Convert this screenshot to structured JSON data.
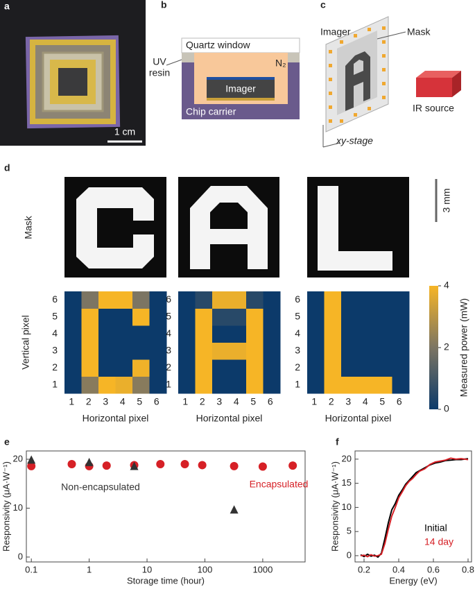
{
  "panel_labels": [
    "a",
    "b",
    "c",
    "d",
    "e",
    "f"
  ],
  "panel_a": {
    "scale_bar": "1 cm"
  },
  "panel_b": {
    "quartz_window": "Quartz window",
    "uv_resin": [
      "UV",
      "resin"
    ],
    "gas": "N₂",
    "imager": "Imager",
    "chip_carrier": "Chip carrier"
  },
  "panel_c": {
    "imager": "Imager",
    "mask": "Mask",
    "ir_source": "IR source",
    "stage": "xy-stage"
  },
  "panel_d": {
    "row_label": "Mask",
    "scale_bar": "3 mm"
  },
  "chart_data": [
    {
      "type": "heatmap",
      "xlabel": "Horizontal pixel",
      "ylabel": "Vertical pixel",
      "x": [
        1,
        2,
        3,
        4,
        5,
        6
      ],
      "y": [
        1,
        2,
        3,
        4,
        5,
        6
      ],
      "values": [
        [
          0,
          2.2,
          4,
          3.8,
          2.2,
          0
        ],
        [
          0,
          4,
          0,
          0,
          3.9,
          0
        ],
        [
          0,
          4,
          0,
          0,
          0,
          0
        ],
        [
          0,
          4,
          0,
          0,
          0,
          0
        ],
        [
          0,
          4,
          0,
          0,
          4,
          0
        ],
        [
          0,
          2,
          4,
          4,
          2,
          0
        ]
      ],
      "zlim": [
        0,
        4
      ],
      "colors": [
        "#0c3a6a",
        "#7c7563",
        "#f6b526"
      ]
    },
    {
      "type": "heatmap",
      "xlabel": "Horizontal pixel",
      "x": [
        1,
        2,
        3,
        4,
        5,
        6
      ],
      "y": [
        1,
        2,
        3,
        4,
        5,
        6
      ],
      "values": [
        [
          0,
          4,
          0,
          0,
          4,
          0
        ],
        [
          0,
          4,
          0,
          0,
          4,
          0
        ],
        [
          0,
          4,
          3.8,
          3.8,
          4,
          0
        ],
        [
          0,
          4,
          0,
          0,
          4,
          0
        ],
        [
          0,
          4,
          0.5,
          0.5,
          4,
          0
        ],
        [
          0,
          0.5,
          3.8,
          3.8,
          0.5,
          0
        ]
      ],
      "zlim": [
        0,
        4
      ],
      "colors": [
        "#0c3a6a",
        "#7c7563",
        "#f6b526"
      ]
    },
    {
      "type": "heatmap",
      "xlabel": "Horizontal pixel",
      "x": [
        1,
        2,
        3,
        4,
        5,
        6
      ],
      "y": [
        1,
        2,
        3,
        4,
        5,
        6
      ],
      "values": [
        [
          0,
          4,
          4,
          4,
          4,
          0
        ],
        [
          0,
          4,
          0,
          0,
          0,
          0
        ],
        [
          0,
          4,
          0,
          0,
          0,
          0
        ],
        [
          0,
          4,
          0,
          0,
          0,
          0
        ],
        [
          0,
          4,
          0,
          0,
          0,
          0
        ],
        [
          0,
          4,
          0,
          0,
          0,
          0
        ]
      ],
      "zlim": [
        0,
        4
      ],
      "zticks": [
        0,
        2,
        4
      ],
      "zlabel": "Measured power (mW)",
      "colors": [
        "#0c3a6a",
        "#7c7563",
        "#f6b526"
      ]
    },
    {
      "type": "scatter",
      "xlabel": "Storage time (hour)",
      "ylabel": "Responsivity (μA·W⁻¹)",
      "xscale": "log",
      "xlim": [
        0.082,
        5400
      ],
      "xticks": [
        0.1,
        1,
        10,
        100,
        1000
      ],
      "ylim": [
        -1,
        21.7
      ],
      "yticks": [
        0,
        10,
        20
      ],
      "series": [
        {
          "name": "Encapsulated",
          "color": "#d62026",
          "marker": "circle",
          "x": [
            0.1,
            0.5,
            1,
            2,
            6,
            17,
            45,
            90,
            320,
            1000,
            3300
          ],
          "values": [
            18.6,
            19,
            18.6,
            18.7,
            18.8,
            19,
            19,
            18.8,
            18.6,
            18.5,
            18.7
          ]
        },
        {
          "name": "Non-encapsulated",
          "color": "#333333",
          "marker": "triangle",
          "x": [
            0.1,
            1,
            6,
            320
          ],
          "values": [
            19.8,
            19.3,
            18.5,
            9.6
          ]
        }
      ]
    },
    {
      "type": "line",
      "xlabel": "Energy (eV)",
      "ylabel": "Responsivity (μA·W⁻¹)",
      "xlim": [
        0.148,
        0.82
      ],
      "xticks": [
        0.2,
        0.4,
        0.6,
        0.8
      ],
      "ylim": [
        -1.3,
        21.7
      ],
      "yticks": [
        0,
        5,
        10,
        15,
        20
      ],
      "x": [
        0.18,
        0.2,
        0.22,
        0.24,
        0.26,
        0.28,
        0.3,
        0.32,
        0.34,
        0.36,
        0.38,
        0.4,
        0.42,
        0.44,
        0.46,
        0.48,
        0.5,
        0.52,
        0.55,
        0.58,
        0.61,
        0.64,
        0.67,
        0.7,
        0.73,
        0.76,
        0.8
      ],
      "series": [
        {
          "name": "Initial",
          "color": "#000000",
          "values": [
            0.2,
            -0.2,
            0.3,
            -0.1,
            0.1,
            -0.3,
            0.5,
            3.5,
            6.8,
            9.5,
            10.8,
            12.5,
            13.6,
            14.8,
            15.6,
            16.4,
            17.2,
            17.6,
            18.2,
            18.8,
            19.2,
            19.4,
            19.7,
            19.8,
            19.9,
            19.9,
            20.1
          ]
        },
        {
          "name": "14 day",
          "color": "#d62026",
          "values": [
            0,
            0.1,
            -0.2,
            0.2,
            -0.1,
            0,
            0.3,
            2.5,
            5.5,
            8.2,
            10,
            12,
            13.2,
            14.5,
            15.4,
            16,
            16.8,
            17.5,
            18,
            18.9,
            19.4,
            19.6,
            19.8,
            20.2,
            20,
            20.1,
            19.9
          ]
        }
      ]
    }
  ]
}
